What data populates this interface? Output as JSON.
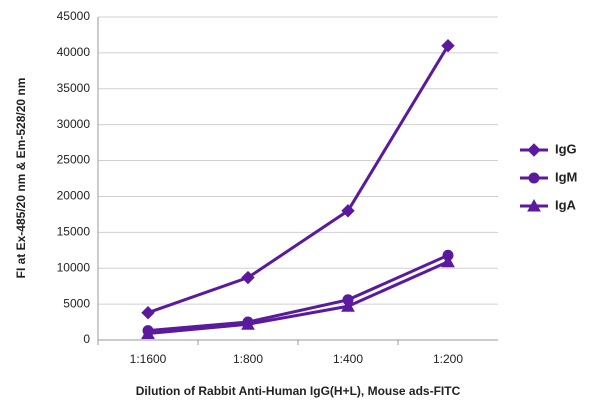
{
  "chart_data": {
    "type": "line",
    "categories": [
      "1:1600",
      "1:800",
      "1:400",
      "1:200"
    ],
    "series": [
      {
        "name": "IgG",
        "color": "#5b1a9e",
        "marker": "diamond",
        "values": [
          3800,
          8700,
          18000,
          41000
        ]
      },
      {
        "name": "IgM",
        "color": "#5b1a9e",
        "marker": "circle",
        "values": [
          1300,
          2500,
          5600,
          11800
        ]
      },
      {
        "name": "IgA",
        "color": "#5b1a9e",
        "marker": "triangle",
        "values": [
          900,
          2200,
          4700,
          10900
        ]
      }
    ],
    "ylim": [
      0,
      45000
    ],
    "yticks": [
      0,
      5000,
      10000,
      15000,
      20000,
      25000,
      30000,
      35000,
      40000,
      45000
    ],
    "grid": true,
    "legend": "right",
    "xlabel": "Dilution of Rabbit Anti-Human IgG(H+L), Mouse ads-FITC",
    "ylabel": "FI at Ex-485/20 nm & Em-528/20 nm"
  }
}
